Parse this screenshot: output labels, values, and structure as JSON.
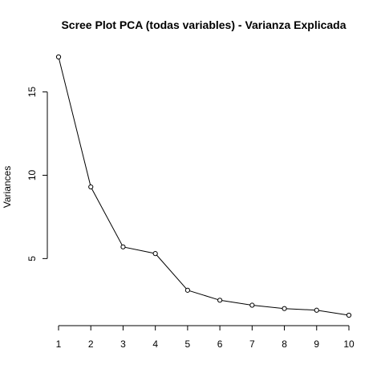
{
  "chart_data": {
    "type": "line",
    "title": "Scree Plot PCA (todas variables) - Varianza Explicada",
    "xlabel": "",
    "ylabel": "Variances",
    "x": [
      1,
      2,
      3,
      4,
      5,
      6,
      7,
      8,
      9,
      10
    ],
    "x_tick_labels": [
      "1",
      "2",
      "3",
      "4",
      "5",
      "6",
      "7",
      "8",
      "9",
      "10"
    ],
    "values": [
      17.1,
      9.3,
      5.7,
      5.3,
      3.1,
      2.5,
      2.2,
      2.0,
      1.9,
      1.6
    ],
    "y_ticks": [
      5,
      10,
      15
    ],
    "y_tick_labels": [
      "5",
      "10",
      "15"
    ],
    "xlim": [
      1,
      10
    ],
    "ylim": [
      1.6,
      17.1
    ],
    "grid": false,
    "markers": "open-circle",
    "line_color": "#000000",
    "marker_fill": "#ffffff"
  }
}
